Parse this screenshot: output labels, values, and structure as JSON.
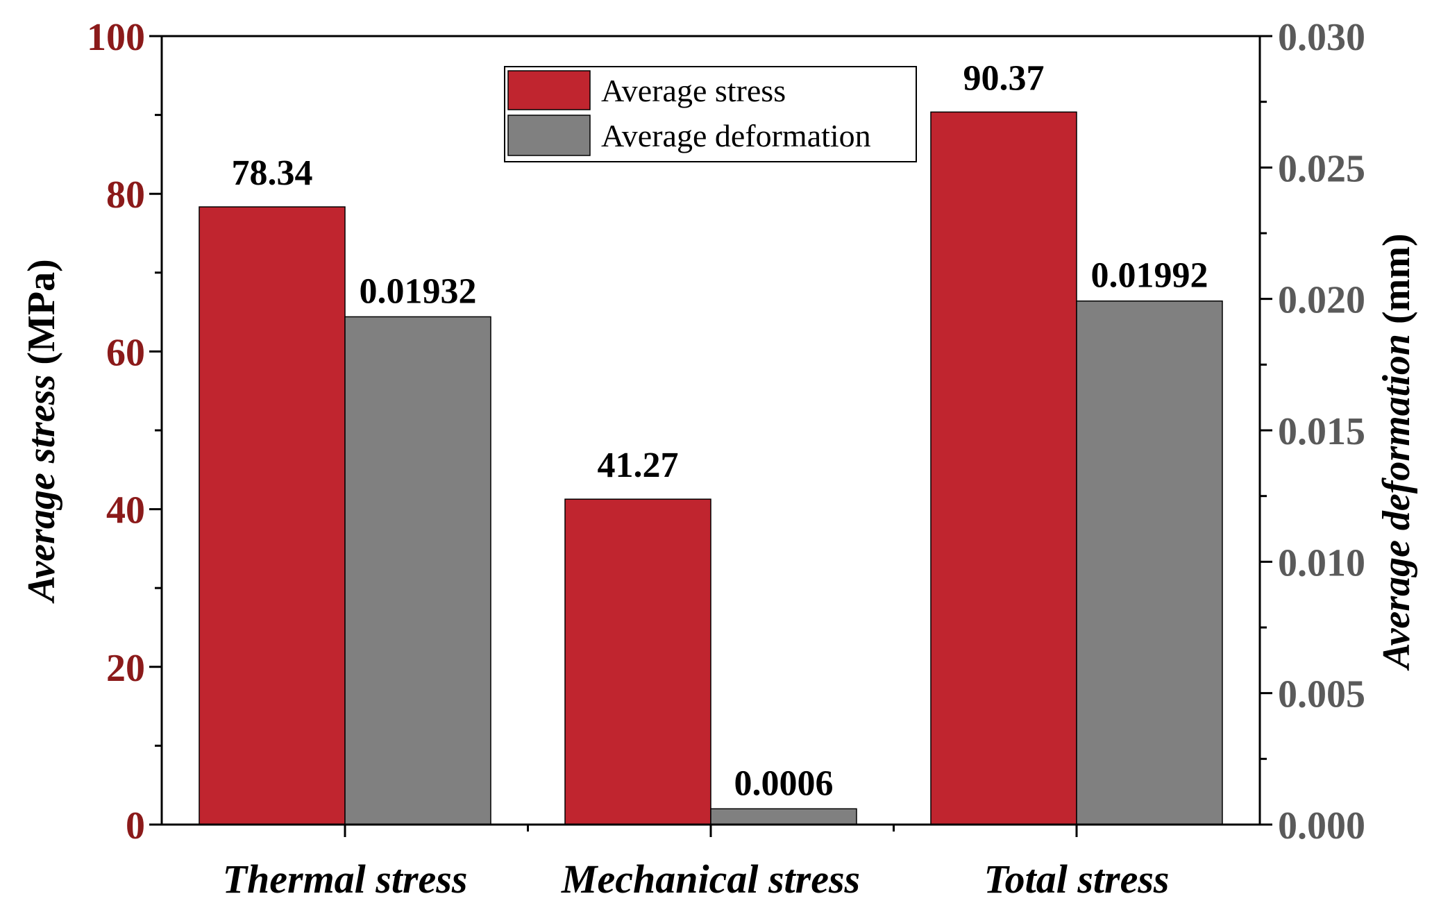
{
  "chart_data": {
    "type": "bar",
    "categories": [
      "Thermal stress",
      "Mechanical stress",
      "Total stress"
    ],
    "series": [
      {
        "name": "Average stress",
        "axis": "left",
        "color": "#C0252F",
        "values": [
          78.34,
          41.27,
          90.37
        ],
        "labels": [
          "78.34",
          "41.27",
          "90.37"
        ]
      },
      {
        "name": "Average deformation",
        "axis": "right",
        "color": "#808080",
        "values": [
          0.01932,
          0.0006,
          0.01992
        ],
        "labels": [
          "0.01932",
          "0.0006",
          "0.01992"
        ]
      }
    ],
    "left_axis": {
      "title_italic": "Average stress",
      "title_unit": "(MPa)",
      "color": "#8B1A1A",
      "ylim": [
        0,
        100
      ],
      "ticks": [
        "0",
        "20",
        "40",
        "60",
        "80",
        "100"
      ]
    },
    "right_axis": {
      "title_italic": "Average deformation",
      "title_unit": "(mm)",
      "color": "#5A5A5A",
      "ylim": [
        0,
        0.03
      ],
      "ticks": [
        "0.000",
        "0.005",
        "0.010",
        "0.015",
        "0.020",
        "0.025",
        "0.030"
      ]
    },
    "legend": {
      "position": "top-center",
      "entries": [
        "Average stress",
        "Average deformation"
      ]
    },
    "grid": false
  }
}
